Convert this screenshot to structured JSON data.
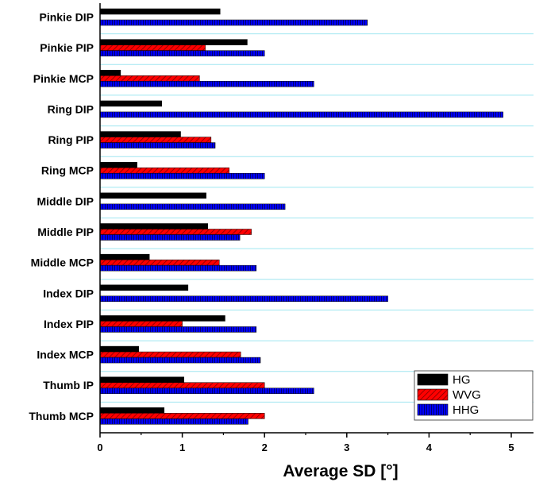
{
  "chart_data": {
    "type": "bar",
    "orientation": "horizontal",
    "categories": [
      "Pinkie DIP",
      "Pinkie PIP",
      "Pinkie MCP",
      "Ring DIP",
      "Ring PIP",
      "Ring MCP",
      "Middle DIP",
      "Middle PIP",
      "Middle MCP",
      "Index DIP",
      "Index PIP",
      "Index MCP",
      "Thumb IP",
      "Thumb MCP"
    ],
    "series": [
      {
        "name": "HG",
        "color": "#000000",
        "pattern": "solid",
        "values": [
          1.46,
          1.79,
          0.25,
          0.75,
          0.98,
          0.45,
          1.29,
          1.31,
          0.6,
          1.07,
          1.52,
          0.47,
          1.02,
          0.78
        ]
      },
      {
        "name": "WVG",
        "color": "#ff0000",
        "pattern": "diagonal-hatch",
        "values": [
          null,
          1.28,
          1.21,
          null,
          1.35,
          1.57,
          null,
          1.84,
          1.45,
          null,
          1.0,
          1.71,
          2.0,
          2.0
        ]
      },
      {
        "name": "HHG",
        "color": "#0000ff",
        "pattern": "vertical-hatch",
        "values": [
          3.25,
          2.0,
          2.6,
          4.9,
          1.4,
          2.0,
          2.25,
          1.7,
          1.9,
          3.5,
          1.9,
          1.95,
          2.6,
          1.8
        ]
      }
    ],
    "xlabel": "Average SD [°]",
    "xlim": [
      0,
      5.3
    ],
    "xticks": [
      "0",
      "1",
      "2",
      "3",
      "4",
      "5"
    ],
    "grid": "horizontal-lines",
    "legend": "bottom-right"
  }
}
